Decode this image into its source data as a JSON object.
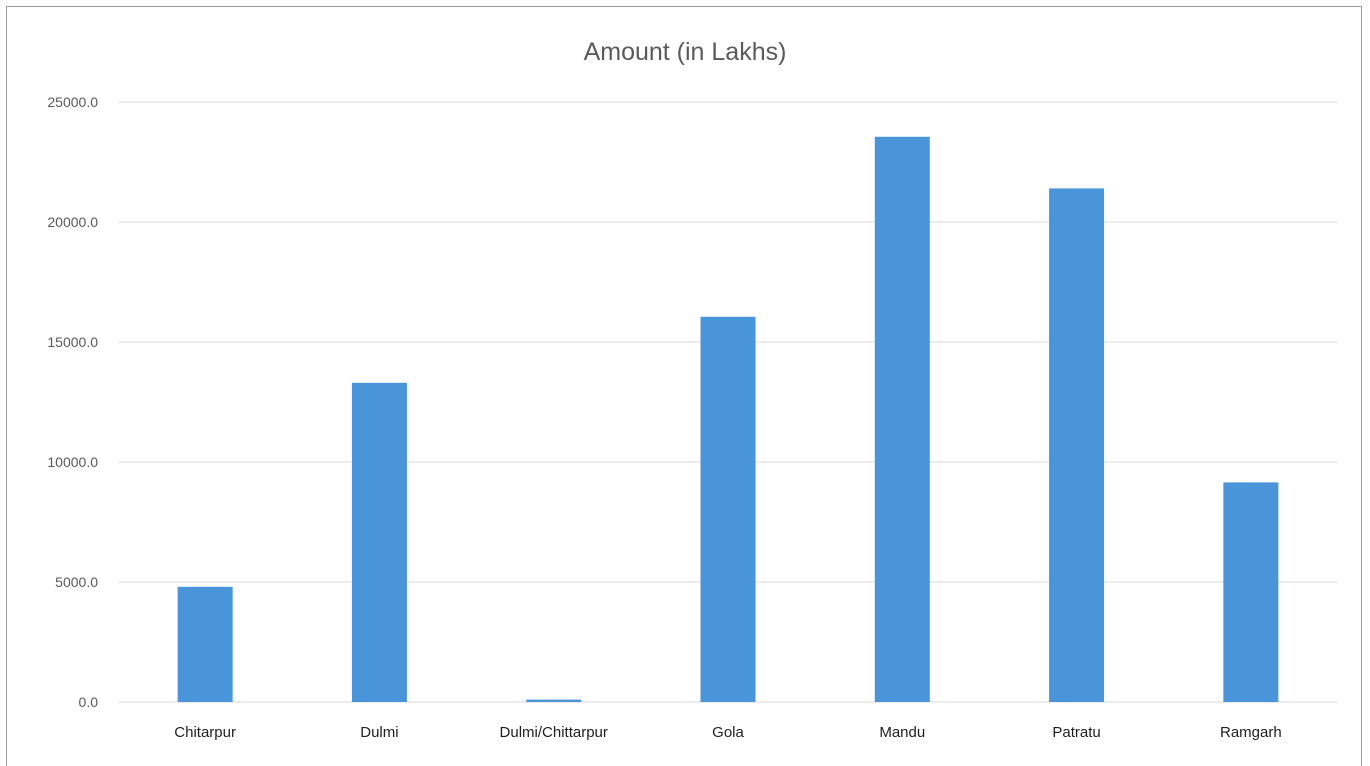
{
  "chart_data": {
    "type": "bar",
    "title": "Amount (in Lakhs)",
    "xlabel": "",
    "ylabel": "",
    "categories": [
      "Chitarpur",
      "Dulmi",
      "Dulmi/Chittarpur",
      "Gola",
      "Mandu",
      "Patratu",
      "Ramgarh"
    ],
    "values": [
      4800,
      13300,
      100,
      16050,
      23550,
      21400,
      9150
    ],
    "ylim": [
      0,
      25000
    ],
    "yticks": [
      0,
      5000,
      10000,
      15000,
      20000,
      25000
    ],
    "ytick_labels": [
      "0.0",
      "5000.0",
      "10000.0",
      "15000.0",
      "20000.0",
      "25000.0"
    ],
    "grid": true,
    "legend": "none",
    "bar_color": "#4a95d9"
  }
}
